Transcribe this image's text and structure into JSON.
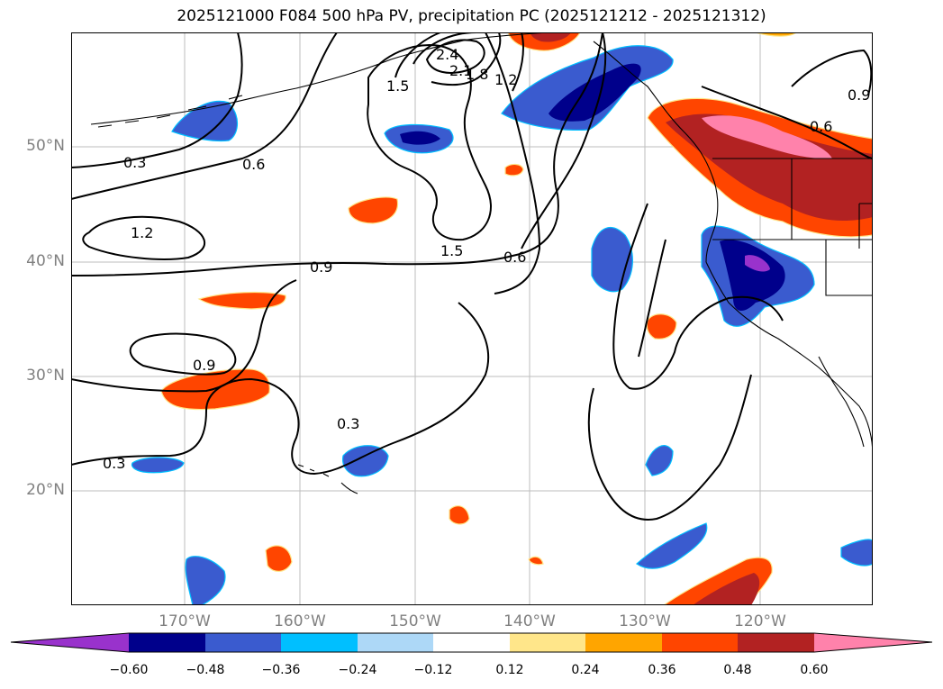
{
  "title": "2025121000 F084 500 hPa PV, precipitation PC (2025121212 - 2025121312)",
  "lat_labels": [
    "50°N",
    "40°N",
    "30°N",
    "20°N"
  ],
  "lon_labels": [
    "170°W",
    "160°W",
    "150°W",
    "140°W",
    "130°W",
    "120°W"
  ],
  "contour_labels": [
    "0.3",
    "0.6",
    "1.2",
    "0.9",
    "1.5",
    "0.6",
    "1.5",
    "2.4",
    "2.1",
    "1.8",
    "1.2",
    "0.6",
    "0.9",
    "0.9",
    "0.3",
    "0.3"
  ],
  "colorbar": {
    "ticks": [
      "−0.60",
      "−0.48",
      "−0.36",
      "−0.24",
      "−0.12",
      "0.12",
      "0.24",
      "0.36",
      "0.48",
      "0.60"
    ],
    "colors": [
      "#9932cc",
      "#00008b",
      "#3a5bcf",
      "#00bfff",
      "#add8f7",
      "#ffffff",
      "#ffe68a",
      "#ffa500",
      "#ff4500",
      "#b22222",
      "#ff82ab"
    ]
  }
}
